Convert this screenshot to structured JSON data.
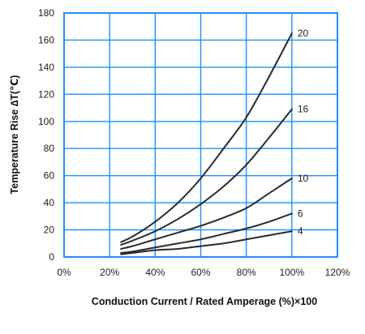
{
  "chart_data": {
    "type": "line",
    "xlabel": "Conduction Current / Rated Amperage (%)×100",
    "ylabel": "Temperature Rise ∆T(℃)",
    "xlim": [
      0,
      120
    ],
    "ylim": [
      0,
      180
    ],
    "x_ticks": [
      "0%",
      "20%",
      "40%",
      "60%",
      "80%",
      "100%",
      "120%"
    ],
    "y_ticks": [
      "0",
      "20",
      "40",
      "60",
      "80",
      "100",
      "120",
      "140",
      "160",
      "180"
    ],
    "grid": true,
    "legend": "inline-labels",
    "colors": {
      "grid": "#1e90ff",
      "line": "#2a2a2a",
      "axis": "#1e90ff"
    },
    "series": [
      {
        "name": "20",
        "x": [
          25,
          30,
          40,
          50,
          60,
          70,
          80,
          90,
          100
        ],
        "y": [
          11,
          15,
          26,
          40,
          58,
          80,
          103,
          133,
          165
        ]
      },
      {
        "name": "16",
        "x": [
          25,
          30,
          40,
          50,
          60,
          70,
          80,
          90,
          100
        ],
        "y": [
          9,
          12,
          19,
          28,
          39,
          52,
          68,
          88,
          109
        ]
      },
      {
        "name": "10",
        "x": [
          25,
          30,
          40,
          50,
          60,
          70,
          80,
          90,
          100
        ],
        "y": [
          6,
          8,
          13,
          18,
          23,
          29,
          36,
          47,
          58
        ]
      },
      {
        "name": "6",
        "x": [
          25,
          30,
          40,
          50,
          60,
          70,
          80,
          90,
          100
        ],
        "y": [
          3,
          4,
          7,
          10,
          13,
          17,
          21,
          26,
          32
        ]
      },
      {
        "name": "4",
        "x": [
          25,
          30,
          40,
          50,
          60,
          70,
          80,
          90,
          100
        ],
        "y": [
          2,
          3,
          5,
          6,
          8,
          10,
          13,
          16,
          19
        ]
      }
    ]
  }
}
